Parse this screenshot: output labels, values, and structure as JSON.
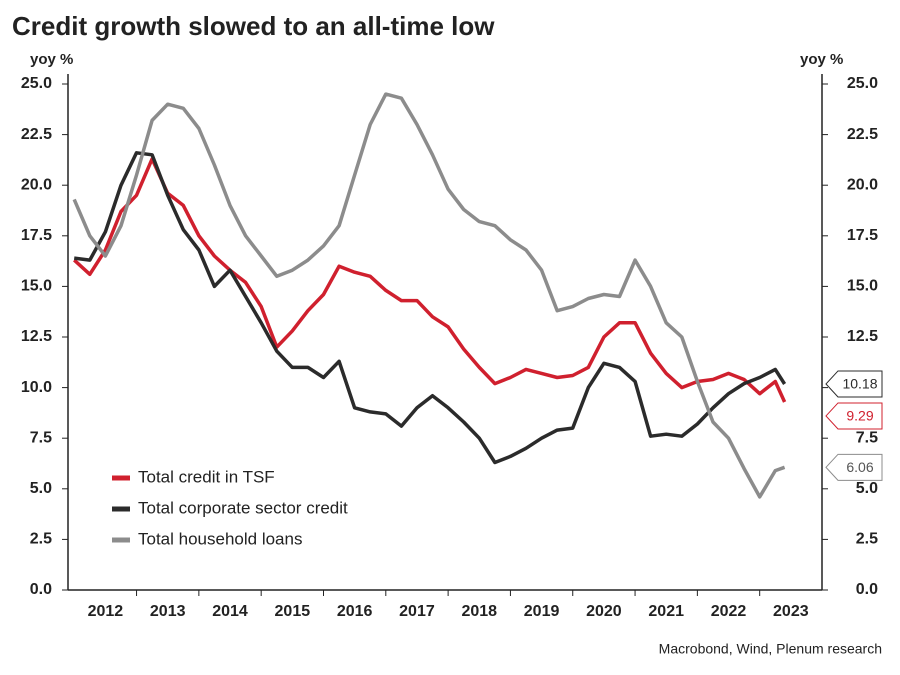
{
  "chart_data": {
    "type": "line",
    "title": "Credit growth slowed to an all-time low",
    "y_label": "yoy %",
    "y2_label": "yoy %",
    "source": "Macrobond, Wind, Plenum research",
    "x": [
      2012.0,
      2012.25,
      2012.5,
      2012.75,
      2013.0,
      2013.25,
      2013.5,
      2013.75,
      2014.0,
      2014.25,
      2014.5,
      2014.75,
      2015.0,
      2015.25,
      2015.5,
      2015.75,
      2016.0,
      2016.25,
      2016.5,
      2016.75,
      2017.0,
      2017.25,
      2017.5,
      2017.75,
      2018.0,
      2018.25,
      2018.5,
      2018.75,
      2019.0,
      2019.25,
      2019.5,
      2019.75,
      2020.0,
      2020.25,
      2020.5,
      2020.75,
      2021.0,
      2021.25,
      2021.5,
      2021.75,
      2022.0,
      2022.25,
      2022.5,
      2022.75,
      2023.0,
      2023.25,
      2023.4
    ],
    "series": [
      {
        "name": "Total credit in TSF",
        "color": "#d0202e",
        "values": [
          16.3,
          15.6,
          16.8,
          18.7,
          19.5,
          21.3,
          19.6,
          19.0,
          17.5,
          16.5,
          15.8,
          15.2,
          14.0,
          12.0,
          12.8,
          13.8,
          14.6,
          16.0,
          15.7,
          15.5,
          14.8,
          14.3,
          14.3,
          13.5,
          13.0,
          11.9,
          11.0,
          10.2,
          10.5,
          10.9,
          10.7,
          10.5,
          10.6,
          11.0,
          12.5,
          13.2,
          13.2,
          11.7,
          10.7,
          10.0,
          10.3,
          10.4,
          10.7,
          10.4,
          9.7,
          10.3,
          9.29
        ]
      },
      {
        "name": "Total corporate sector credit",
        "color": "#2b2b2b",
        "values": [
          16.4,
          16.3,
          17.7,
          20.0,
          21.6,
          21.5,
          19.5,
          17.8,
          16.8,
          15.0,
          15.8,
          14.5,
          13.2,
          11.8,
          11.0,
          11.0,
          10.5,
          11.3,
          9.0,
          8.8,
          8.7,
          8.1,
          9.0,
          9.6,
          9.0,
          8.3,
          7.5,
          6.3,
          6.6,
          7.0,
          7.5,
          7.9,
          8.0,
          10.0,
          11.2,
          11.0,
          10.3,
          7.6,
          7.7,
          7.6,
          8.2,
          9.0,
          9.7,
          10.2,
          10.5,
          10.9,
          10.18
        ]
      },
      {
        "name": "Total household loans",
        "color": "#8c8c8c",
        "values": [
          19.3,
          17.5,
          16.5,
          18.0,
          20.5,
          23.2,
          24.0,
          23.8,
          22.8,
          21.0,
          19.0,
          17.5,
          16.5,
          15.5,
          15.8,
          16.3,
          17.0,
          18.0,
          20.5,
          23.0,
          24.5,
          24.3,
          23.0,
          21.5,
          19.8,
          18.8,
          18.2,
          18.0,
          17.3,
          16.8,
          15.8,
          13.8,
          14.0,
          14.4,
          14.6,
          14.5,
          16.3,
          15.0,
          13.2,
          12.5,
          10.3,
          8.3,
          7.5,
          6.0,
          4.6,
          5.9,
          6.06
        ]
      }
    ],
    "xlim": [
      2011.9,
      2024.0
    ],
    "xticks": [
      {
        "value": 2012.5,
        "label": "2012"
      },
      {
        "value": 2013.5,
        "label": "2013"
      },
      {
        "value": 2014.5,
        "label": "2014"
      },
      {
        "value": 2015.5,
        "label": "2015"
      },
      {
        "value": 2016.5,
        "label": "2016"
      },
      {
        "value": 2017.5,
        "label": "2017"
      },
      {
        "value": 2018.5,
        "label": "2018"
      },
      {
        "value": 2019.5,
        "label": "2019"
      },
      {
        "value": 2020.5,
        "label": "2020"
      },
      {
        "value": 2021.5,
        "label": "2021"
      },
      {
        "value": 2022.5,
        "label": "2022"
      },
      {
        "value": 2023.5,
        "label": "2023"
      }
    ],
    "ylim": [
      0,
      25
    ],
    "yticks": [
      {
        "value": 0,
        "label": "0.0"
      },
      {
        "value": 2.5,
        "label": "2.5"
      },
      {
        "value": 5,
        "label": "5.0"
      },
      {
        "value": 7.5,
        "label": "7.5"
      },
      {
        "value": 10,
        "label": "10.0"
      },
      {
        "value": 12.5,
        "label": "12.5"
      },
      {
        "value": 15,
        "label": "15.0"
      },
      {
        "value": 17.5,
        "label": "17.5"
      },
      {
        "value": 20,
        "label": "20.0"
      },
      {
        "value": 22.5,
        "label": "22.5"
      },
      {
        "value": 25,
        "label": "25.0"
      }
    ],
    "y2lim": [
      0,
      25
    ],
    "y2ticks": [
      {
        "value": 0,
        "label": "0.0"
      },
      {
        "value": 2.5,
        "label": "2.5"
      },
      {
        "value": 5,
        "label": "5.0"
      },
      {
        "value": 7.5,
        "label": "7.5"
      },
      {
        "value": 10,
        "label": "10.0"
      },
      {
        "value": 12.5,
        "label": "12.5"
      },
      {
        "value": 15,
        "label": "15.0"
      },
      {
        "value": 17.5,
        "label": "17.5"
      },
      {
        "value": 20,
        "label": "20.0"
      },
      {
        "value": 22.5,
        "label": "22.5"
      },
      {
        "value": 25,
        "label": "25.0"
      }
    ],
    "grid": false,
    "legend": "lower-left"
  }
}
